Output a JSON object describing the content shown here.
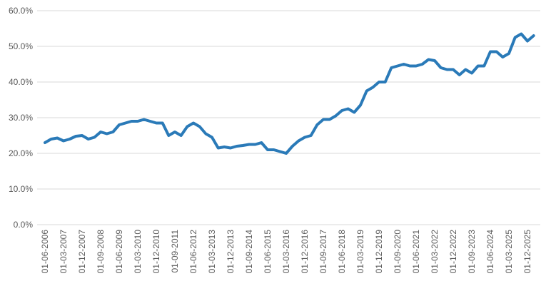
{
  "chart_data": {
    "type": "line",
    "categories": [
      "01-06-2006",
      null,
      null,
      "01-03-2007",
      null,
      null,
      "01-12-2007",
      null,
      null,
      "01-09-2008",
      null,
      null,
      "01-06-2009",
      null,
      null,
      "01-03-2010",
      null,
      null,
      "01-12-2010",
      null,
      null,
      "01-09-2011",
      null,
      null,
      "01-06-2012",
      null,
      null,
      "01-03-2013",
      null,
      null,
      "01-12-2013",
      null,
      null,
      "01-09-2014",
      null,
      null,
      "01-06-2015",
      null,
      null,
      "01-03-2016",
      null,
      null,
      "01-12-2016",
      null,
      null,
      "01-09-2017",
      null,
      null,
      "01-06-2018",
      null,
      null,
      "01-03-2019",
      null,
      null,
      "01-12-2019",
      null,
      null,
      "01-09-2020",
      null,
      null,
      "01-06-2021",
      null,
      null,
      "01-03-2022",
      null,
      null,
      "01-12-2022",
      null,
      null,
      "01-09-2023",
      null,
      null,
      "01-06-2024",
      null,
      null,
      "01-03-2025",
      null,
      null,
      "01-12-2025",
      null
    ],
    "series": [
      {
        "color": "#2a7ab8",
        "values": [
          23,
          24,
          24.3,
          23.5,
          24,
          24.8,
          25,
          24,
          24.5,
          26,
          25.5,
          26,
          28,
          28.5,
          29,
          29,
          29.5,
          29,
          28.5,
          28.5,
          25,
          26,
          25,
          27.5,
          28.5,
          27.5,
          25.5,
          24.5,
          21.5,
          21.8,
          21.5,
          22,
          22.2,
          22.5,
          22.5,
          23,
          21,
          21,
          20.5,
          20,
          22,
          23.5,
          24.5,
          25,
          28,
          29.5,
          29.5,
          30.5,
          32,
          32.5,
          31.5,
          33.5,
          37.5,
          38.5,
          40,
          40,
          44,
          44.5,
          45,
          44.5,
          44.5,
          45,
          46.3,
          46,
          44,
          43.5,
          43.5,
          42,
          43.5,
          42.5,
          44.5,
          44.5,
          48.5,
          48.5,
          47,
          48,
          52.5,
          53.5,
          51.5,
          53
        ]
      }
    ],
    "ylim": [
      0,
      60
    ],
    "yticks": [
      {
        "value": 0,
        "label": "0.0%"
      },
      {
        "value": 10,
        "label": "10.0%"
      },
      {
        "value": 20,
        "label": "20.0%"
      },
      {
        "value": 30,
        "label": "30.0%"
      },
      {
        "value": 40,
        "label": "40.0%"
      },
      {
        "value": 50,
        "label": "50.0%"
      },
      {
        "value": 60,
        "label": "60.0%"
      }
    ],
    "grid": true
  }
}
